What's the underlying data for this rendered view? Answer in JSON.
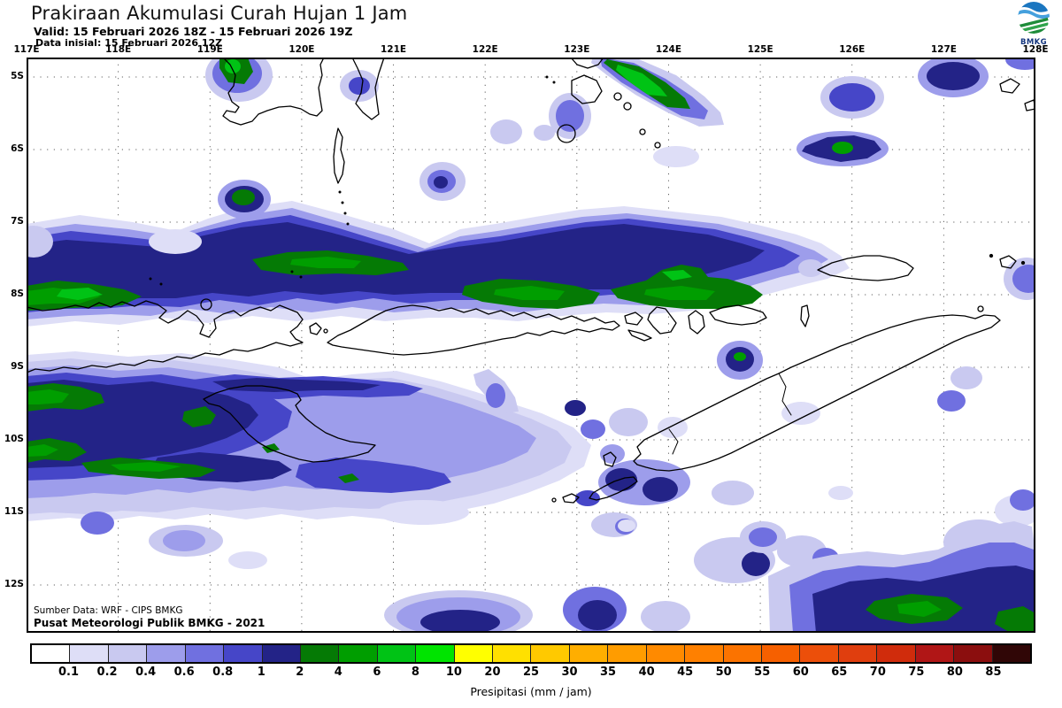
{
  "header": {
    "title": "Prakiraan Akumulasi Curah Hujan 1 Jam",
    "valid": "Valid: 15 Februari 2026 18Z - 15 Februari 2026 19Z",
    "init": "Data inisial: 15 Februari 2026 12Z"
  },
  "logo": {
    "label": "BMKG"
  },
  "axes": {
    "lon_labels": [
      "117E",
      "118E",
      "119E",
      "120E",
      "121E",
      "122E",
      "123E",
      "124E",
      "125E",
      "126E",
      "127E",
      "128E"
    ],
    "lat_labels": [
      "5S",
      "6S",
      "7S",
      "8S",
      "9S",
      "10S",
      "11S",
      "12S"
    ]
  },
  "colorbar": {
    "caption": "Presipitasi (mm / jam)",
    "boundary_labels": [
      "0.1",
      "0.2",
      "0.4",
      "0.6",
      "0.8",
      "1",
      "2",
      "4",
      "6",
      "8",
      "10",
      "20",
      "25",
      "30",
      "35",
      "40",
      "45",
      "50",
      "55",
      "60",
      "65",
      "70",
      "75",
      "80",
      "85"
    ],
    "cell_colors": [
      "#ffffff",
      "#dedef7",
      "#c9c9f0",
      "#9d9deb",
      "#7070e0",
      "#4646c8",
      "#232387",
      "#057a05",
      "#009e00",
      "#00c315",
      "#00e400",
      "#ffff00",
      "#ffe000",
      "#ffc900",
      "#ffae00",
      "#ff9c00",
      "#ff8a00",
      "#ff8000",
      "#fb7300",
      "#f66000",
      "#ec4f0a",
      "#e03e0e",
      "#d02c0c",
      "#b01616",
      "#8b0e0e",
      "#300606"
    ]
  },
  "footer": {
    "source": "Sumber Data: WRF - CIPS BMKG",
    "credit": "Pusat Meteorologi Publik BMKG - 2021"
  }
}
